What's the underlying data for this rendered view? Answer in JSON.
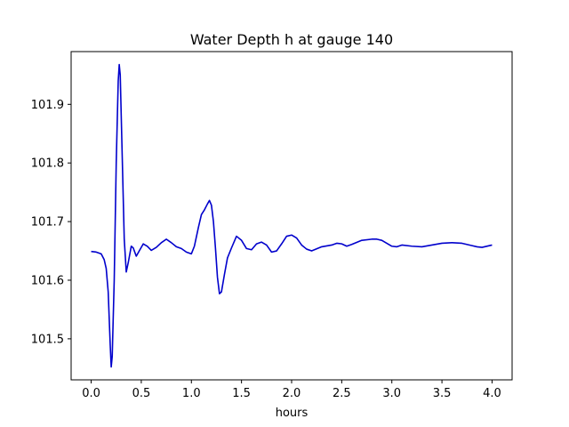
{
  "chart_data": {
    "type": "line",
    "title": "Water Depth h at gauge 140",
    "xlabel": "hours",
    "ylabel": "",
    "xlim": [
      -0.2,
      4.2
    ],
    "ylim": [
      101.43,
      101.99
    ],
    "xticks": [
      0.0,
      0.5,
      1.0,
      1.5,
      2.0,
      2.5,
      3.0,
      3.5,
      4.0
    ],
    "xtick_labels": [
      "0.0",
      "0.5",
      "1.0",
      "1.5",
      "2.0",
      "2.5",
      "3.0",
      "3.5",
      "4.0"
    ],
    "yticks": [
      101.5,
      101.6,
      101.7,
      101.8,
      101.9
    ],
    "ytick_labels": [
      "101.5",
      "101.6",
      "101.7",
      "101.8",
      "101.9"
    ],
    "grid": false,
    "legend": "none",
    "series": [
      {
        "color": "#0000cc",
        "x": [
          0.0,
          0.05,
          0.1,
          0.13,
          0.15,
          0.17,
          0.19,
          0.2,
          0.21,
          0.23,
          0.25,
          0.27,
          0.28,
          0.29,
          0.31,
          0.33,
          0.35,
          0.37,
          0.4,
          0.42,
          0.45,
          0.48,
          0.52,
          0.56,
          0.6,
          0.65,
          0.7,
          0.75,
          0.8,
          0.85,
          0.9,
          0.95,
          1.0,
          1.03,
          1.07,
          1.1,
          1.13,
          1.16,
          1.18,
          1.2,
          1.22,
          1.24,
          1.26,
          1.28,
          1.3,
          1.33,
          1.36,
          1.4,
          1.45,
          1.5,
          1.55,
          1.6,
          1.65,
          1.7,
          1.75,
          1.8,
          1.85,
          1.9,
          1.95,
          2.0,
          2.05,
          2.1,
          2.15,
          2.2,
          2.3,
          2.4,
          2.45,
          2.5,
          2.55,
          2.6,
          2.7,
          2.8,
          2.85,
          2.9,
          3.0,
          3.05,
          3.1,
          3.2,
          3.3,
          3.4,
          3.5,
          3.6,
          3.7,
          3.8,
          3.85,
          3.9,
          4.0
        ],
        "y": [
          101.649,
          101.648,
          101.645,
          101.635,
          101.62,
          101.58,
          101.49,
          101.452,
          101.47,
          101.6,
          101.8,
          101.94,
          101.968,
          101.95,
          101.81,
          101.67,
          101.614,
          101.63,
          101.658,
          101.655,
          101.641,
          101.65,
          101.662,
          101.658,
          101.651,
          101.656,
          101.664,
          101.67,
          101.664,
          101.657,
          101.654,
          101.648,
          101.645,
          101.658,
          101.69,
          101.712,
          101.72,
          101.73,
          101.736,
          101.728,
          101.7,
          101.655,
          101.605,
          101.577,
          101.58,
          101.61,
          101.638,
          101.655,
          101.675,
          101.668,
          101.654,
          101.652,
          101.662,
          101.665,
          101.66,
          101.648,
          101.65,
          101.662,
          101.675,
          101.677,
          101.672,
          101.66,
          101.653,
          101.65,
          101.657,
          101.66,
          101.663,
          101.662,
          101.658,
          101.661,
          101.668,
          101.67,
          101.67,
          101.668,
          101.658,
          101.657,
          101.66,
          101.658,
          101.657,
          101.66,
          101.663,
          101.664,
          101.663,
          101.659,
          101.657,
          101.656,
          101.66
        ]
      }
    ]
  }
}
